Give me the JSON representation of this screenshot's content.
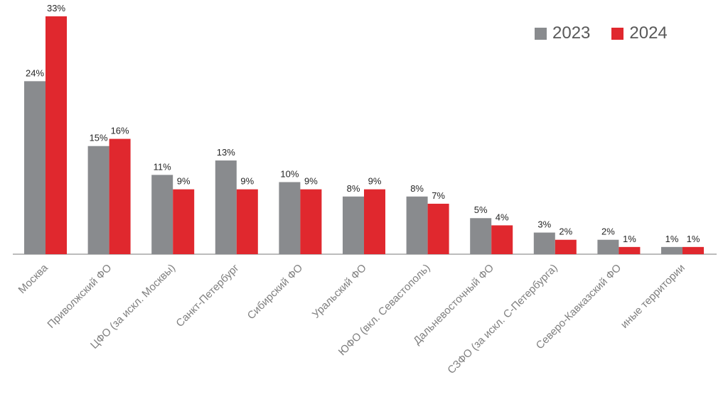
{
  "chart_data": {
    "type": "bar",
    "categories": [
      "Москва",
      "Приволжский ФО",
      "ЦФО (за искл. Москвы)",
      "Санкт-Петербург",
      "Сибирский ФО",
      "Уральский ФО",
      "ЮФО (вкл. Севастополь)",
      "Дальневосточный ФО",
      "СЗФО (за искл. С-Петербурга)",
      "Северо-Кавказский ФО",
      "иные территории"
    ],
    "series": [
      {
        "name": "2023",
        "color": "#898B8E",
        "values": [
          24,
          15,
          11,
          13,
          10,
          8,
          8,
          5,
          3,
          2,
          1
        ],
        "labels": [
          "24%",
          "15%",
          "11%",
          "13%",
          "10%",
          "8%",
          "8%",
          "5%",
          "3%",
          "2%",
          "1%"
        ]
      },
      {
        "name": "2024",
        "color": "#E0282E",
        "values": [
          33,
          16,
          9,
          9,
          9,
          9,
          7,
          4,
          2,
          1,
          1
        ],
        "labels": [
          "33%",
          "16%",
          "9%",
          "9%",
          "9%",
          "9%",
          "7%",
          "4%",
          "2%",
          "1%",
          "1%"
        ]
      }
    ],
    "ylim": [
      0,
      33
    ],
    "legend_position": "top-right",
    "grid": false
  }
}
